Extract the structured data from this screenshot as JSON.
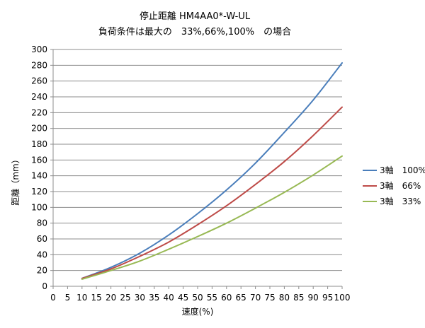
{
  "chart_data": {
    "type": "line",
    "title": "停止距離 HM4AA0*-W-UL",
    "subtitle": "負荷条件は最大の　33%,66%,100%　の場合",
    "xlabel": "速度(%)",
    "ylabel": "距離（mm）",
    "xlim": [
      0,
      100
    ],
    "ylim": [
      0,
      300
    ],
    "xticks": [
      0,
      5,
      10,
      15,
      20,
      25,
      30,
      35,
      40,
      45,
      50,
      55,
      60,
      65,
      70,
      75,
      80,
      85,
      90,
      95,
      100
    ],
    "yticks": [
      0,
      20,
      40,
      60,
      80,
      100,
      120,
      140,
      160,
      180,
      200,
      220,
      240,
      260,
      280,
      300
    ],
    "grid": "horizontal",
    "legend_position": "right",
    "x": [
      10,
      20,
      30,
      40,
      50,
      60,
      70,
      80,
      90,
      100
    ],
    "series": [
      {
        "name": "3軸　100%",
        "color": "#4a7ebb",
        "values": [
          10,
          24,
          42,
          65,
          92,
          122,
          156,
          195,
          236,
          283
        ]
      },
      {
        "name": "3軸　66%",
        "color": "#be4b48",
        "values": [
          10,
          22,
          38,
          56,
          78,
          102,
          129,
          158,
          191,
          227
        ]
      },
      {
        "name": "3軸　33%",
        "color": "#98b954",
        "values": [
          9,
          20,
          32,
          47,
          63,
          80,
          99,
          119,
          141,
          165
        ]
      }
    ]
  }
}
